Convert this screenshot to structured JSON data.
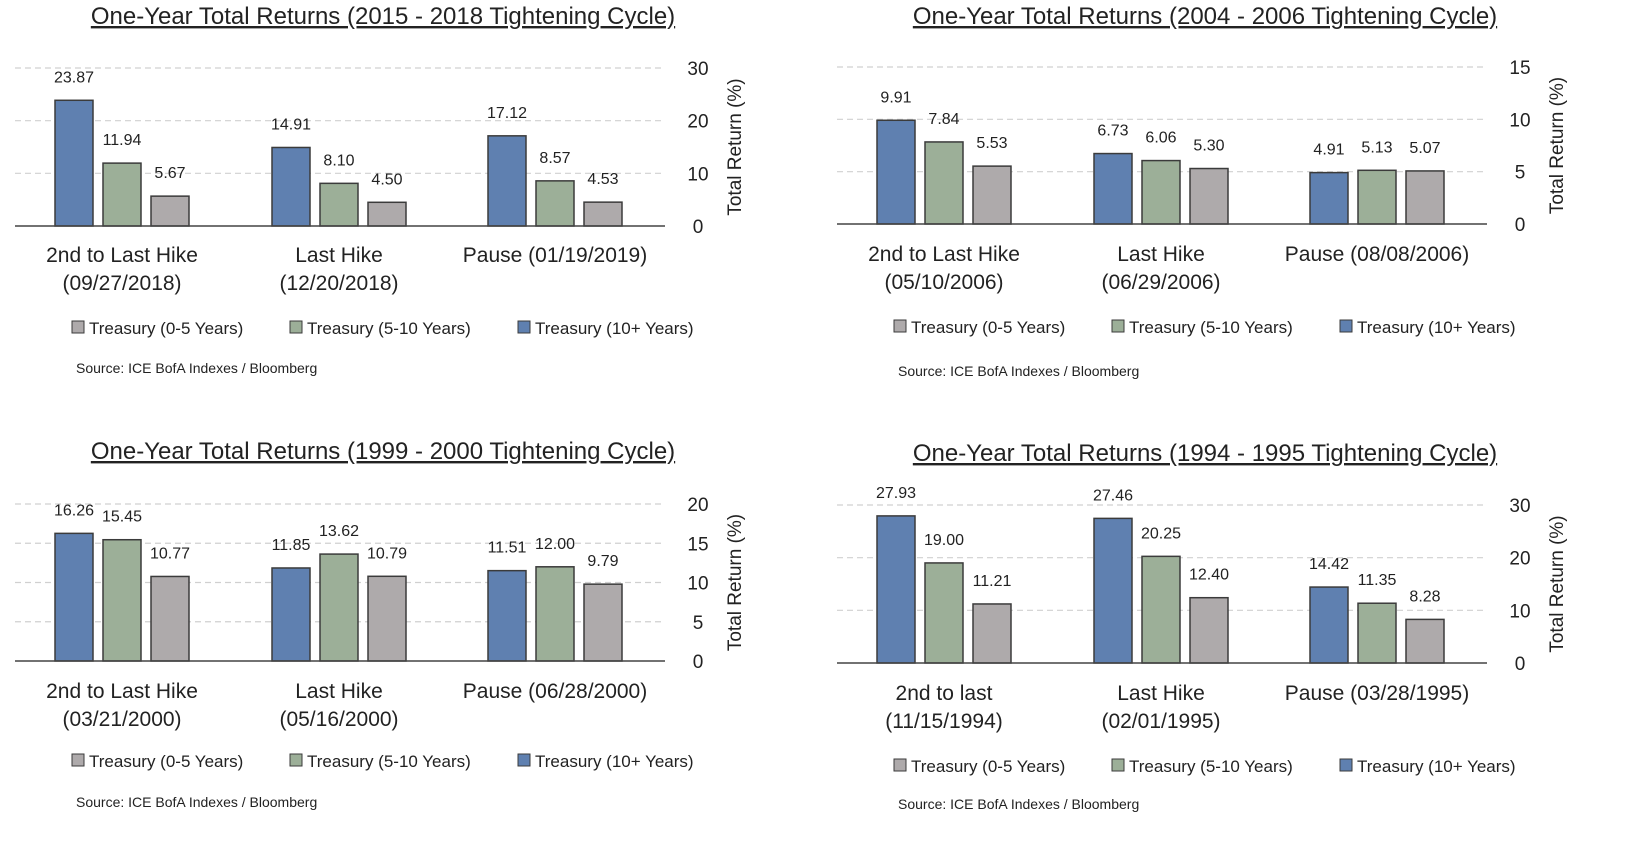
{
  "legend": {
    "items": [
      {
        "label": "Treasury (0-5 Years)",
        "color": "#aeaaab"
      },
      {
        "label": "Treasury (5-10 Years)",
        "color": "#9caf98"
      },
      {
        "label": "Treasury (10+ Years)",
        "color": "#5f80b0"
      }
    ]
  },
  "source": "Source: ICE BofA Indexes / Bloomberg",
  "chart_data": [
    {
      "type": "bar",
      "title": "One-Year Total Returns (2015 - 2018 Tightening Cycle)",
      "categories": [
        [
          "2nd to Last Hike",
          "(09/27/2018)"
        ],
        [
          "Last Hike",
          "(12/20/2018)"
        ],
        [
          "Pause (01/19/2019)"
        ]
      ],
      "series": [
        {
          "name": "Treasury (10+ Years)",
          "color": "#5f80b0",
          "values": [
            23.87,
            14.91,
            17.12
          ]
        },
        {
          "name": "Treasury (5-10 Years)",
          "color": "#9caf98",
          "values": [
            11.94,
            8.1,
            8.57
          ]
        },
        {
          "name": "Treasury (0-5 Years)",
          "color": "#aeaaab",
          "values": [
            5.67,
            4.5,
            4.53
          ]
        }
      ],
      "value_labels": [
        [
          "23.87",
          "14.91",
          "17.12"
        ],
        [
          "11.94",
          "8.10",
          "8.57"
        ],
        [
          "5.67",
          "4.50",
          "4.53"
        ]
      ],
      "ylabel": "Total Return (%)",
      "ylim": [
        0,
        30
      ],
      "yticks": [
        0,
        10,
        20,
        30
      ],
      "grid": true,
      "legend_position": "bottom"
    },
    {
      "type": "bar",
      "title": "One-Year Total Returns (2004 - 2006 Tightening Cycle)",
      "categories": [
        [
          "2nd to Last Hike",
          "(05/10/2006)"
        ],
        [
          "Last Hike",
          "(06/29/2006)"
        ],
        [
          "Pause (08/08/2006)"
        ]
      ],
      "series": [
        {
          "name": "Treasury (10+ Years)",
          "color": "#5f80b0",
          "values": [
            9.91,
            6.73,
            4.91
          ]
        },
        {
          "name": "Treasury (5-10 Years)",
          "color": "#9caf98",
          "values": [
            7.84,
            6.06,
            5.13
          ]
        },
        {
          "name": "Treasury (0-5 Years)",
          "color": "#aeaaab",
          "values": [
            5.53,
            5.3,
            5.07
          ]
        }
      ],
      "value_labels": [
        [
          "9.91",
          "6.73",
          "4.91"
        ],
        [
          "7.84",
          "6.06",
          "5.13"
        ],
        [
          "5.53",
          "5.30",
          "5.07"
        ]
      ],
      "ylabel": "Total Return (%)",
      "ylim": [
        0,
        15
      ],
      "yticks": [
        0,
        5,
        10,
        15
      ],
      "grid": true,
      "legend_position": "bottom"
    },
    {
      "type": "bar",
      "title": "One-Year Total Returns (1999 - 2000 Tightening Cycle)",
      "categories": [
        [
          "2nd to Last Hike",
          "(03/21/2000)"
        ],
        [
          "Last Hike",
          "(05/16/2000)"
        ],
        [
          "Pause (06/28/2000)"
        ]
      ],
      "series": [
        {
          "name": "Treasury (10+ Years)",
          "color": "#5f80b0",
          "values": [
            16.26,
            11.85,
            11.51
          ]
        },
        {
          "name": "Treasury (5-10 Years)",
          "color": "#9caf98",
          "values": [
            15.45,
            13.62,
            12.0
          ]
        },
        {
          "name": "Treasury (0-5 Years)",
          "color": "#aeaaab",
          "values": [
            10.77,
            10.79,
            9.79
          ]
        }
      ],
      "value_labels": [
        [
          "16.26",
          "11.85",
          "11.51"
        ],
        [
          "15.45",
          "13.62",
          "12.00"
        ],
        [
          "10.77",
          "10.79",
          "9.79"
        ]
      ],
      "ylabel": "Total Return (%)",
      "ylim": [
        0,
        20
      ],
      "yticks": [
        0,
        5,
        10,
        15,
        20
      ],
      "grid": true,
      "legend_position": "bottom"
    },
    {
      "type": "bar",
      "title": "One-Year Total Returns (1994 - 1995 Tightening Cycle)",
      "categories": [
        [
          "2nd to last",
          "(11/15/1994)"
        ],
        [
          "Last Hike",
          "(02/01/1995)"
        ],
        [
          "Pause (03/28/1995)"
        ]
      ],
      "series": [
        {
          "name": "Treasury (10+ Years)",
          "color": "#5f80b0",
          "values": [
            27.93,
            27.46,
            14.42
          ]
        },
        {
          "name": "Treasury (5-10 Years)",
          "color": "#9caf98",
          "values": [
            19.0,
            20.25,
            11.35
          ]
        },
        {
          "name": "Treasury (0-5 Years)",
          "color": "#aeaaab",
          "values": [
            11.21,
            12.4,
            8.28
          ]
        }
      ],
      "value_labels": [
        [
          "27.93",
          "27.46",
          "14.42"
        ],
        [
          "19.00",
          "20.25",
          "11.35"
        ],
        [
          "11.21",
          "12.40",
          "8.28"
        ]
      ],
      "ylabel": "Total Return (%)",
      "ylim": [
        0,
        30
      ],
      "yticks": [
        0,
        10,
        20,
        30
      ],
      "grid": true,
      "legend_position": "bottom"
    }
  ]
}
